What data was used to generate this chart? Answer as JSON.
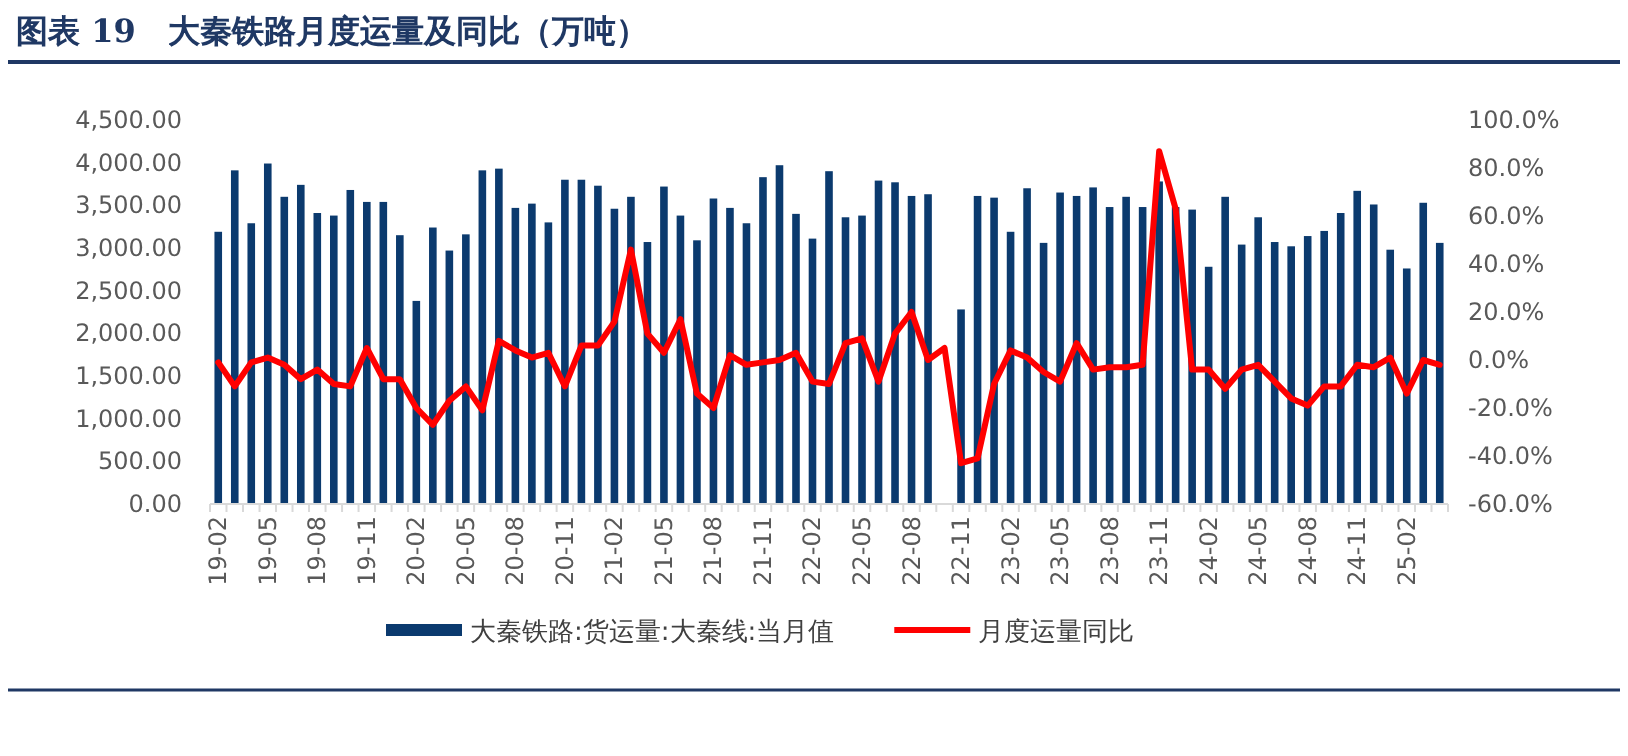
{
  "chart_data": {
    "type": "bar",
    "title": "图表 19　大秦铁路月度运量及同比（万吨）",
    "categories": [
      "19-02",
      null,
      null,
      "19-05",
      null,
      null,
      "19-08",
      null,
      null,
      "19-11",
      null,
      null,
      "20-02",
      null,
      null,
      "20-05",
      null,
      null,
      "20-08",
      null,
      null,
      "20-11",
      null,
      null,
      "21-02",
      null,
      null,
      "21-05",
      null,
      null,
      "21-08",
      null,
      null,
      "21-11",
      null,
      null,
      "22-02",
      null,
      null,
      "22-05",
      null,
      null,
      "22-08",
      null,
      null,
      "22-11",
      null,
      null,
      "23-02",
      null,
      null,
      "23-05",
      null,
      null,
      "23-08",
      null,
      null,
      "23-11",
      null,
      null,
      "24-02",
      null,
      null,
      "24-05",
      null,
      null,
      "24-08",
      null,
      null,
      "24-11",
      null,
      null,
      "25-02",
      null,
      null
    ],
    "series": [
      {
        "name": "大秦铁路:货运量:大秦线:当月值",
        "color": "#0b3a6e",
        "values": [
          3190,
          3910,
          3290,
          3990,
          3600,
          3740,
          3410,
          3380,
          3680,
          3540,
          3540,
          3150,
          2380,
          3240,
          2970,
          3160,
          3910,
          3930,
          3470,
          3520,
          3300,
          3800,
          3800,
          3730,
          3460,
          3600,
          3070,
          3720,
          3380,
          3090,
          3580,
          3470,
          3290,
          3830,
          3970,
          3400,
          3110,
          3900,
          3360,
          3380,
          3790,
          3770,
          3610,
          3630,
          null,
          2280,
          3610,
          3590,
          3190,
          3700,
          3060,
          3650,
          3610,
          3710,
          3480,
          3600,
          3480,
          3780,
          3480,
          3450,
          2780,
          3600,
          3040,
          3360,
          3070,
          3020,
          3140,
          3200,
          3410,
          3670,
          3510,
          2980,
          2760,
          3530,
          3060
        ]
      },
      {
        "name": "月度运量同比",
        "type": "line",
        "axis": "y2",
        "color": "#ff0000",
        "values": [
          -1,
          -11,
          -1,
          1,
          -2,
          -8,
          -4,
          -10,
          -11,
          5,
          -8,
          -8,
          -20,
          -27,
          -17,
          -11,
          -21,
          8,
          4,
          1,
          3,
          -11,
          6,
          6,
          16,
          46,
          11,
          3,
          17,
          -14,
          -20,
          2,
          -2,
          -1,
          0,
          3,
          -9,
          -10,
          7,
          9,
          -9,
          11,
          20,
          0,
          5,
          -43,
          -41,
          -10,
          4,
          1,
          -5,
          -9,
          7,
          -4,
          -3,
          -3,
          -2,
          87,
          63,
          -4,
          -4,
          -12,
          -4,
          -2,
          -9,
          -16,
          -19,
          -11,
          -11,
          -2,
          -3,
          1,
          -14,
          0,
          -2
        ]
      }
    ],
    "ylim": [
      0,
      4500
    ],
    "yticks": [
      {
        "value": 0,
        "label": "0.00"
      },
      {
        "value": 500,
        "label": "500.00"
      },
      {
        "value": 1000,
        "label": "1,000.00"
      },
      {
        "value": 1500,
        "label": "1,500.00"
      },
      {
        "value": 2000,
        "label": "2,000.00"
      },
      {
        "value": 2500,
        "label": "2,500.00"
      },
      {
        "value": 3000,
        "label": "3,000.00"
      },
      {
        "value": 3500,
        "label": "3,500.00"
      },
      {
        "value": 4000,
        "label": "4,000.00"
      },
      {
        "value": 4500,
        "label": "4,500.00"
      }
    ],
    "y2lim": [
      -60,
      100
    ],
    "y2ticks": [
      {
        "value": -60,
        "label": "-60.0%"
      },
      {
        "value": -40,
        "label": "-40.0%"
      },
      {
        "value": -20,
        "label": "-20.0%"
      },
      {
        "value": 0,
        "label": "0.0%"
      },
      {
        "value": 20,
        "label": "20.0%"
      },
      {
        "value": 40,
        "label": "40.0%"
      },
      {
        "value": 60,
        "label": "60.0%"
      },
      {
        "value": 80,
        "label": "80.0%"
      },
      {
        "value": 100,
        "label": "100.0%"
      }
    ],
    "grid": false,
    "legend": "bottom"
  }
}
